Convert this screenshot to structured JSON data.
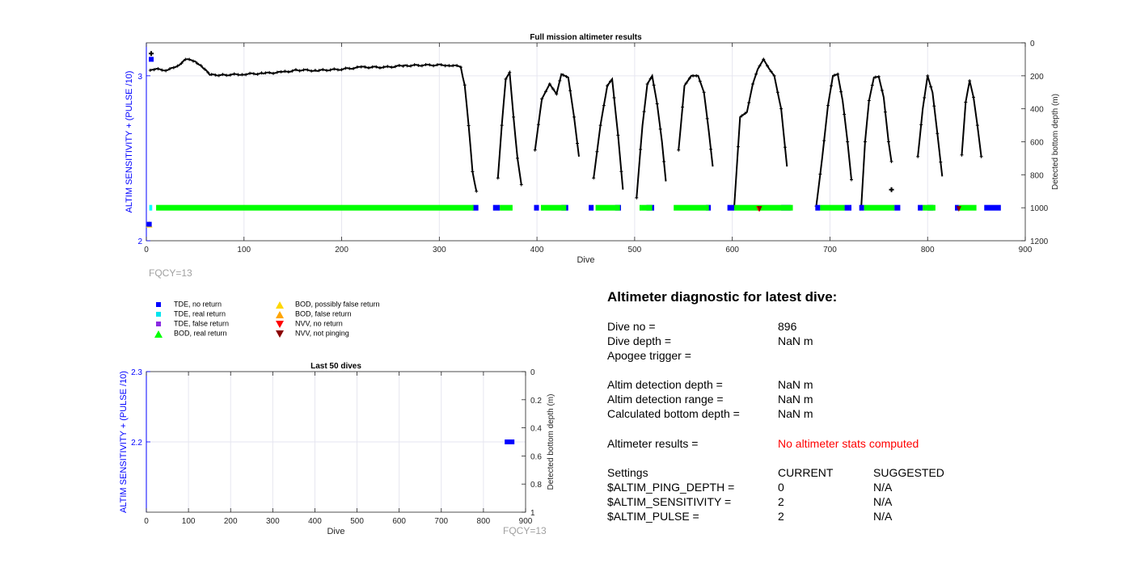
{
  "chart_data": [
    {
      "type": "scatter",
      "title": "Full mission altimeter results",
      "xlabel": "Dive",
      "ylabel_left": "ALTIM SENSITIVITY + (PULSE /10)",
      "ylabel_right": "Detected bottom depth (m)",
      "xlim": [
        0,
        900
      ],
      "ylim_left": [
        2,
        3.2
      ],
      "ylim_right_reversed": [
        0,
        1200
      ],
      "xticks": [
        0,
        100,
        200,
        300,
        400,
        500,
        600,
        700,
        800,
        900
      ],
      "yticks_left": [
        2,
        3
      ],
      "yticks_right": [
        0,
        200,
        400,
        600,
        800,
        1000,
        1200
      ],
      "grid": true,
      "annotation": "FQCY=13",
      "settings_series": {
        "name": "ALTIM SENSITIVITY + (PULSE /10)",
        "points": [
          [
            3,
            2.1
          ],
          [
            5,
            3.1
          ]
        ]
      },
      "bottom_depth_segments": [
        [
          [
            4,
            170
          ],
          [
            10,
            160
          ],
          [
            20,
            165
          ],
          [
            30,
            150
          ],
          [
            40,
            100
          ],
          [
            50,
            110
          ],
          [
            58,
            150
          ],
          [
            65,
            195
          ],
          [
            80,
            195
          ],
          [
            100,
            190
          ],
          [
            120,
            185
          ],
          [
            140,
            178
          ],
          [
            155,
            165
          ],
          [
            175,
            168
          ],
          [
            200,
            160
          ],
          [
            220,
            148
          ],
          [
            245,
            148
          ],
          [
            265,
            138
          ],
          [
            290,
            135
          ],
          [
            310,
            135
          ],
          [
            322,
            145
          ],
          [
            326,
            260
          ],
          [
            330,
            500
          ],
          [
            334,
            780
          ],
          [
            338,
            900
          ]
        ],
        [
          [
            360,
            820
          ],
          [
            364,
            500
          ],
          [
            368,
            220
          ],
          [
            372,
            180
          ],
          [
            376,
            450
          ],
          [
            380,
            700
          ],
          [
            384,
            860
          ]
        ],
        [
          [
            398,
            650
          ],
          [
            405,
            340
          ],
          [
            413,
            250
          ],
          [
            420,
            310
          ],
          [
            425,
            190
          ],
          [
            432,
            210
          ],
          [
            438,
            450
          ],
          [
            443,
            690
          ]
        ],
        [
          [
            458,
            820
          ],
          [
            465,
            500
          ],
          [
            472,
            260
          ],
          [
            477,
            220
          ],
          [
            483,
            560
          ],
          [
            488,
            890
          ]
        ],
        [
          [
            502,
            940
          ],
          [
            508,
            500
          ],
          [
            513,
            250
          ],
          [
            518,
            200
          ],
          [
            523,
            370
          ],
          [
            528,
            600
          ],
          [
            532,
            840
          ]
        ],
        [
          [
            545,
            650
          ],
          [
            551,
            260
          ],
          [
            558,
            200
          ],
          [
            565,
            200
          ],
          [
            571,
            300
          ],
          [
            576,
            540
          ],
          [
            580,
            750
          ]
        ],
        [
          [
            602,
            990
          ],
          [
            608,
            450
          ],
          [
            615,
            420
          ],
          [
            621,
            250
          ],
          [
            626,
            160
          ],
          [
            632,
            100
          ],
          [
            638,
            160
          ],
          [
            643,
            200
          ],
          [
            650,
            400
          ],
          [
            656,
            750
          ]
        ],
        [
          [
            686,
            990
          ],
          [
            692,
            700
          ],
          [
            698,
            380
          ],
          [
            703,
            200
          ],
          [
            708,
            190
          ],
          [
            713,
            350
          ],
          [
            718,
            600
          ],
          [
            722,
            830
          ]
        ],
        [
          [
            732,
            1000
          ],
          [
            736,
            600
          ],
          [
            740,
            350
          ],
          [
            745,
            210
          ],
          [
            750,
            205
          ],
          [
            755,
            330
          ],
          [
            760,
            600
          ],
          [
            763,
            720
          ]
        ],
        [
          [
            790,
            690
          ],
          [
            795,
            400
          ],
          [
            800,
            200
          ],
          [
            805,
            300
          ],
          [
            810,
            550
          ],
          [
            815,
            810
          ]
        ],
        [
          [
            835,
            680
          ],
          [
            839,
            360
          ],
          [
            843,
            230
          ],
          [
            847,
            330
          ],
          [
            851,
            500
          ],
          [
            855,
            690
          ]
        ]
      ],
      "bottom_depth_isolated": [
        [
          5,
          65
        ],
        [
          763,
          890
        ]
      ],
      "legend_series_tracks": [
        {
          "name": "TDE, no return",
          "color": "#0000ff",
          "ranges": [
            [
              334,
              340
            ],
            [
              355,
              362
            ],
            [
              397,
              402
            ],
            [
              425,
              432
            ],
            [
              453,
              458
            ],
            [
              480,
              486
            ],
            [
              512,
              520
            ],
            [
              573,
              578
            ],
            [
              595,
              602
            ],
            [
              650,
              660
            ],
            [
              685,
              690
            ],
            [
              715,
              722
            ],
            [
              730,
              735
            ],
            [
              766,
              772
            ],
            [
              790,
              795
            ],
            [
              800,
              806
            ],
            [
              828,
              832
            ],
            [
              858,
              875
            ]
          ]
        },
        {
          "name": "BOD, real return",
          "color": "#00ff00",
          "ranges": [
            [
              10,
              335
            ],
            [
              362,
              375
            ],
            [
              404,
              430
            ],
            [
              460,
              485
            ],
            [
              505,
              518
            ],
            [
              540,
              576
            ],
            [
              602,
              662
            ],
            [
              690,
              715
            ],
            [
              735,
              766
            ],
            [
              795,
              808
            ],
            [
              832,
              850
            ]
          ]
        },
        {
          "name": "TDE, real return",
          "color": "#00ffff",
          "ranges": [
            [
              3,
              6
            ]
          ]
        },
        {
          "name": "NVV, no return",
          "color": "#ff0000",
          "points": [
            627
          ]
        },
        {
          "name": "NVV, not pinging",
          "color": "#8b0000",
          "points": [
            628,
            832
          ]
        },
        {
          "name": "BOD, possibly false return",
          "color": "#ffd700",
          "points": [
            3
          ]
        }
      ]
    },
    {
      "type": "scatter",
      "title": "Last 50 dives",
      "xlabel": "Dive",
      "ylabel_left": "ALTIM SENSITIVITY + (PULSE /10)",
      "ylabel_right": "Detected bottom depth (m)",
      "xlim": [
        0,
        900
      ],
      "ylim_left": [
        2.1,
        2.3
      ],
      "ylim_right_reversed": [
        0,
        1
      ],
      "xticks": [
        0,
        100,
        200,
        300,
        400,
        500,
        600,
        700,
        800,
        900
      ],
      "yticks_left": [
        2.2,
        2.3
      ],
      "yticks_right": [
        0,
        0.2,
        0.4,
        0.6,
        0.8,
        1
      ],
      "grid": true,
      "annotation": "FQCY=13",
      "points": [
        {
          "x": 862,
          "y": 2.2,
          "series": "TDE, no return"
        }
      ]
    }
  ],
  "legend": {
    "items": [
      {
        "label": "TDE, no return",
        "symbol": "square",
        "color": "#0000ff"
      },
      {
        "label": "TDE, real return",
        "symbol": "square",
        "color": "#00e5ee"
      },
      {
        "label": "TDE, false return",
        "symbol": "square",
        "color": "#8a2be2"
      },
      {
        "label": "BOD, real return",
        "symbol": "triangle-up",
        "color": "#00ff00"
      },
      {
        "label": "BOD, possibly false return",
        "symbol": "triangle-up",
        "color": "#ffd700"
      },
      {
        "label": "BOD, false return",
        "symbol": "triangle-up",
        "color": "#ffa500"
      },
      {
        "label": "NVV, no return",
        "symbol": "triangle-down",
        "color": "#ff0000"
      },
      {
        "label": "NVV, not pinging",
        "symbol": "triangle-down",
        "color": "#8b0000"
      }
    ]
  },
  "diagnostic": {
    "title": "Altimeter diagnostic for latest dive:",
    "dive_no_label": "Dive no =",
    "dive_no_value": "896",
    "dive_depth_label": "Dive depth =",
    "dive_depth_value": "NaN m",
    "apogee_label": "Apogee trigger =",
    "apogee_value": "",
    "detect_depth_label": "Altim detection depth =",
    "detect_depth_value": "NaN m",
    "detect_range_label": "Altim detection range =",
    "detect_range_value": "NaN m",
    "calc_bottom_label": "Calculated bottom depth =",
    "calc_bottom_value": "NaN m",
    "results_label": "Altimeter results =",
    "results_value": "No altimeter stats computed",
    "settings_label": "Settings",
    "current_header": "CURRENT",
    "suggested_header": "SUGGESTED",
    "settings": [
      {
        "name": "$ALTIM_PING_DEPTH =",
        "current": "0",
        "suggested": "N/A"
      },
      {
        "name": "$ALTIM_SENSITIVITY =",
        "current": "2",
        "suggested": "N/A"
      },
      {
        "name": "$ALTIM_PULSE =",
        "current": "2",
        "suggested": "N/A"
      }
    ]
  },
  "colors": {
    "axis_left": "#0000ff",
    "axis": "#262626",
    "grid": "#e6e6f0",
    "trace": "#000000",
    "annotation": "#a0a0a0",
    "alert": "#ff0000"
  }
}
